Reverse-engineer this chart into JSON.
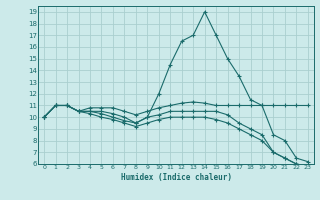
{
  "xlabel": "Humidex (Indice chaleur)",
  "bg_color": "#cceaea",
  "grid_color": "#aacfcf",
  "line_color": "#1a6b6b",
  "marker": "+",
  "markersize": 3.5,
  "linewidth": 0.8,
  "xlim": [
    -0.5,
    23.5
  ],
  "ylim": [
    6,
    19.5
  ],
  "xticks": [
    0,
    1,
    2,
    3,
    4,
    5,
    6,
    7,
    8,
    9,
    10,
    11,
    12,
    13,
    14,
    15,
    16,
    17,
    18,
    19,
    20,
    21,
    22,
    23
  ],
  "yticks": [
    6,
    7,
    8,
    9,
    10,
    11,
    12,
    13,
    14,
    15,
    16,
    17,
    18,
    19
  ],
  "lines": [
    [
      10.0,
      11.0,
      11.0,
      10.5,
      10.5,
      10.5,
      10.3,
      10.0,
      9.5,
      10.0,
      12.0,
      14.5,
      16.5,
      17.0,
      19.0,
      17.0,
      15.0,
      13.5,
      11.5,
      11.0,
      8.5,
      8.0,
      6.5,
      6.2
    ],
    [
      10.0,
      11.0,
      11.0,
      10.5,
      10.8,
      10.8,
      10.8,
      10.5,
      10.2,
      10.5,
      10.8,
      11.0,
      11.2,
      11.3,
      11.2,
      11.0,
      11.0,
      11.0,
      11.0,
      11.0,
      11.0,
      11.0,
      11.0,
      11.0
    ],
    [
      10.0,
      11.0,
      11.0,
      10.5,
      10.5,
      10.3,
      10.0,
      9.7,
      9.5,
      10.0,
      10.2,
      10.5,
      10.5,
      10.5,
      10.5,
      10.5,
      10.2,
      9.5,
      9.0,
      8.5,
      7.0,
      6.5,
      6.0,
      5.8
    ],
    [
      10.0,
      11.0,
      11.0,
      10.5,
      10.3,
      10.0,
      9.8,
      9.5,
      9.2,
      9.5,
      9.8,
      10.0,
      10.0,
      10.0,
      10.0,
      9.8,
      9.5,
      9.0,
      8.5,
      8.0,
      7.0,
      6.5,
      6.0,
      5.8
    ]
  ]
}
